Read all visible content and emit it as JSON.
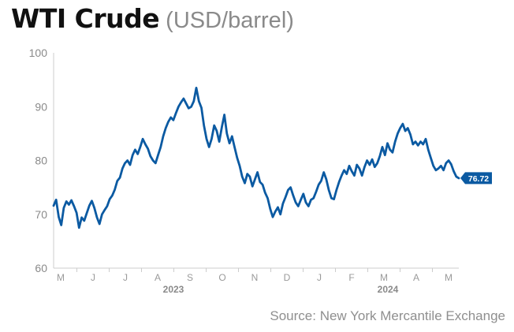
{
  "title": "WTI Crude",
  "subtitle": "(USD/barrel)",
  "source": "Source: New York Mercantile Exchange",
  "colors": {
    "line": "#0b5aa2",
    "label_bg": "#0b5aa2",
    "axis": "#cccccc"
  },
  "chart_data": {
    "type": "line",
    "title": "WTI Crude",
    "subtitle": "(USD/barrel)",
    "xlabel": "",
    "ylabel": "",
    "ylim": [
      60,
      100
    ],
    "yticks": [
      60,
      70,
      80,
      90,
      100
    ],
    "grid": false,
    "x_month_labels": [
      "M",
      "J",
      "J",
      "A",
      "S",
      "O",
      "N",
      "D",
      "J",
      "F",
      "M",
      "A",
      "M"
    ],
    "x_year_labels": [
      {
        "label": "2023",
        "under_month_index": 3
      },
      {
        "label": "2024",
        "under_month_index": 10
      }
    ],
    "last_value_label": "76.72",
    "series": [
      {
        "values": [
          71.6,
          72.7,
          69.5,
          68.0,
          71.2,
          72.4,
          71.8,
          72.6,
          71.5,
          70.3,
          67.5,
          69.4,
          68.8,
          70.2,
          71.6,
          72.5,
          71.2,
          69.4,
          68.2,
          70.0,
          70.8,
          71.5,
          72.8,
          73.5,
          74.6,
          76.2,
          76.8,
          78.5,
          79.5,
          80.0,
          79.2,
          81.0,
          82.0,
          81.2,
          82.5,
          84.0,
          83.0,
          82.2,
          80.8,
          80.0,
          79.5,
          81.0,
          82.5,
          84.5,
          86.0,
          87.2,
          88.0,
          87.5,
          88.8,
          90.0,
          90.8,
          91.5,
          90.6,
          89.7,
          90.0,
          91.0,
          93.5,
          91.0,
          89.8,
          86.5,
          84.0,
          82.5,
          84.0,
          86.5,
          85.5,
          83.5,
          86.2,
          88.5,
          85.0,
          83.2,
          84.5,
          82.5,
          80.5,
          79.0,
          77.0,
          75.8,
          77.5,
          77.0,
          75.2,
          76.5,
          77.8,
          76.0,
          75.5,
          74.0,
          73.0,
          71.0,
          69.5,
          70.5,
          71.3,
          70.0,
          72.0,
          73.2,
          74.5,
          75.0,
          73.5,
          72.2,
          71.5,
          72.7,
          73.8,
          72.2,
          71.5,
          72.7,
          73.0,
          74.2,
          75.5,
          76.2,
          77.8,
          76.5,
          74.5,
          73.0,
          72.8,
          74.5,
          76.0,
          77.2,
          78.2,
          77.5,
          79.0,
          78.0,
          77.2,
          79.2,
          78.5,
          77.2,
          78.8,
          80.0,
          79.2,
          80.2,
          78.8,
          79.5,
          80.8,
          82.5,
          81.0,
          83.2,
          82.0,
          81.5,
          83.5,
          85.0,
          86.0,
          86.8,
          85.5,
          86.0,
          84.8,
          83.0,
          83.5,
          82.8,
          83.5,
          83.0,
          84.0,
          82.0,
          80.5,
          79.0,
          78.2,
          78.5,
          79.0,
          78.2,
          79.5,
          80.0,
          79.3,
          78.0,
          77.0,
          76.72
        ]
      }
    ]
  }
}
